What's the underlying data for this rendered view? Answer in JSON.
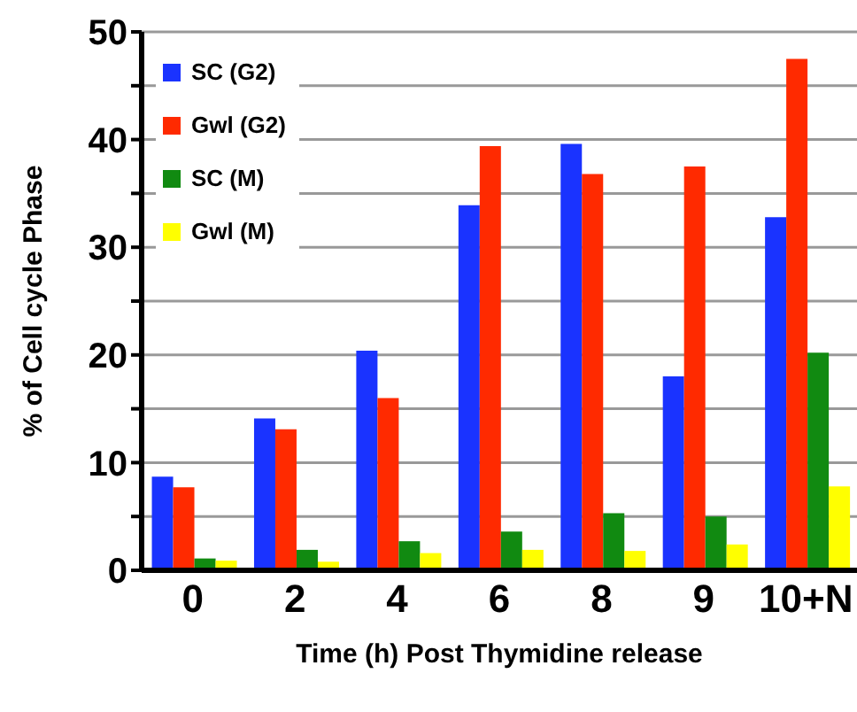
{
  "chart_data": {
    "type": "bar",
    "xlabel": "Time (h) Post Thymidine release",
    "ylabel": "% of Cell cycle Phase",
    "categories": [
      "0",
      "2",
      "4",
      "6",
      "8",
      "9",
      "10+N"
    ],
    "series": [
      {
        "name": "SC (G2)",
        "color": "#1a33ff",
        "values": [
          8.7,
          14.1,
          20.4,
          33.9,
          39.6,
          18.0,
          32.8
        ]
      },
      {
        "name": "Gwl (G2)",
        "color": "#ff2a00",
        "values": [
          7.7,
          13.1,
          16.0,
          39.4,
          36.8,
          37.5,
          47.5
        ]
      },
      {
        "name": "SC (M)",
        "color": "#118a11",
        "values": [
          1.1,
          1.9,
          2.7,
          3.6,
          5.3,
          5.0,
          20.2
        ]
      },
      {
        "name": "Gwl (M)",
        "color": "#ffff00",
        "values": [
          0.9,
          0.8,
          1.6,
          1.9,
          1.8,
          2.4,
          7.8
        ]
      }
    ],
    "ylim": [
      0,
      50
    ],
    "yticks": [
      0,
      {
        "value": 5,
        "label": null
      },
      10,
      {
        "value": 15,
        "label": null
      },
      20,
      {
        "value": 25,
        "label": null
      },
      30,
      {
        "value": 35,
        "label": null
      },
      40,
      {
        "value": 45,
        "label": null
      },
      50
    ],
    "grid": "y",
    "legend": "top left"
  }
}
